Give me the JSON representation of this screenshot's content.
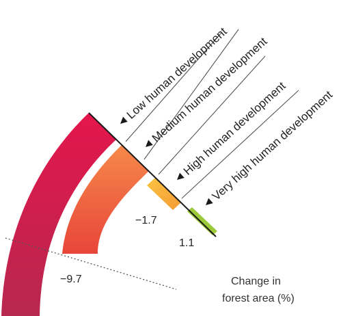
{
  "chart_data": {
    "type": "bar",
    "title": "",
    "categories": [
      "Low human development",
      "Medium human development",
      "High human development",
      "Very high human development"
    ],
    "values": [
      null,
      -9.7,
      -1.7,
      1.1
    ],
    "value_labels": [
      "",
      "−9.7",
      "−1.7",
      "1.1"
    ],
    "colors": [
      "#d81b4a",
      "#f07a3e",
      "#f7b73a",
      "#9cc93a"
    ],
    "axis_note_line1": "Change in",
    "axis_note_line2": "forest area (%)"
  }
}
